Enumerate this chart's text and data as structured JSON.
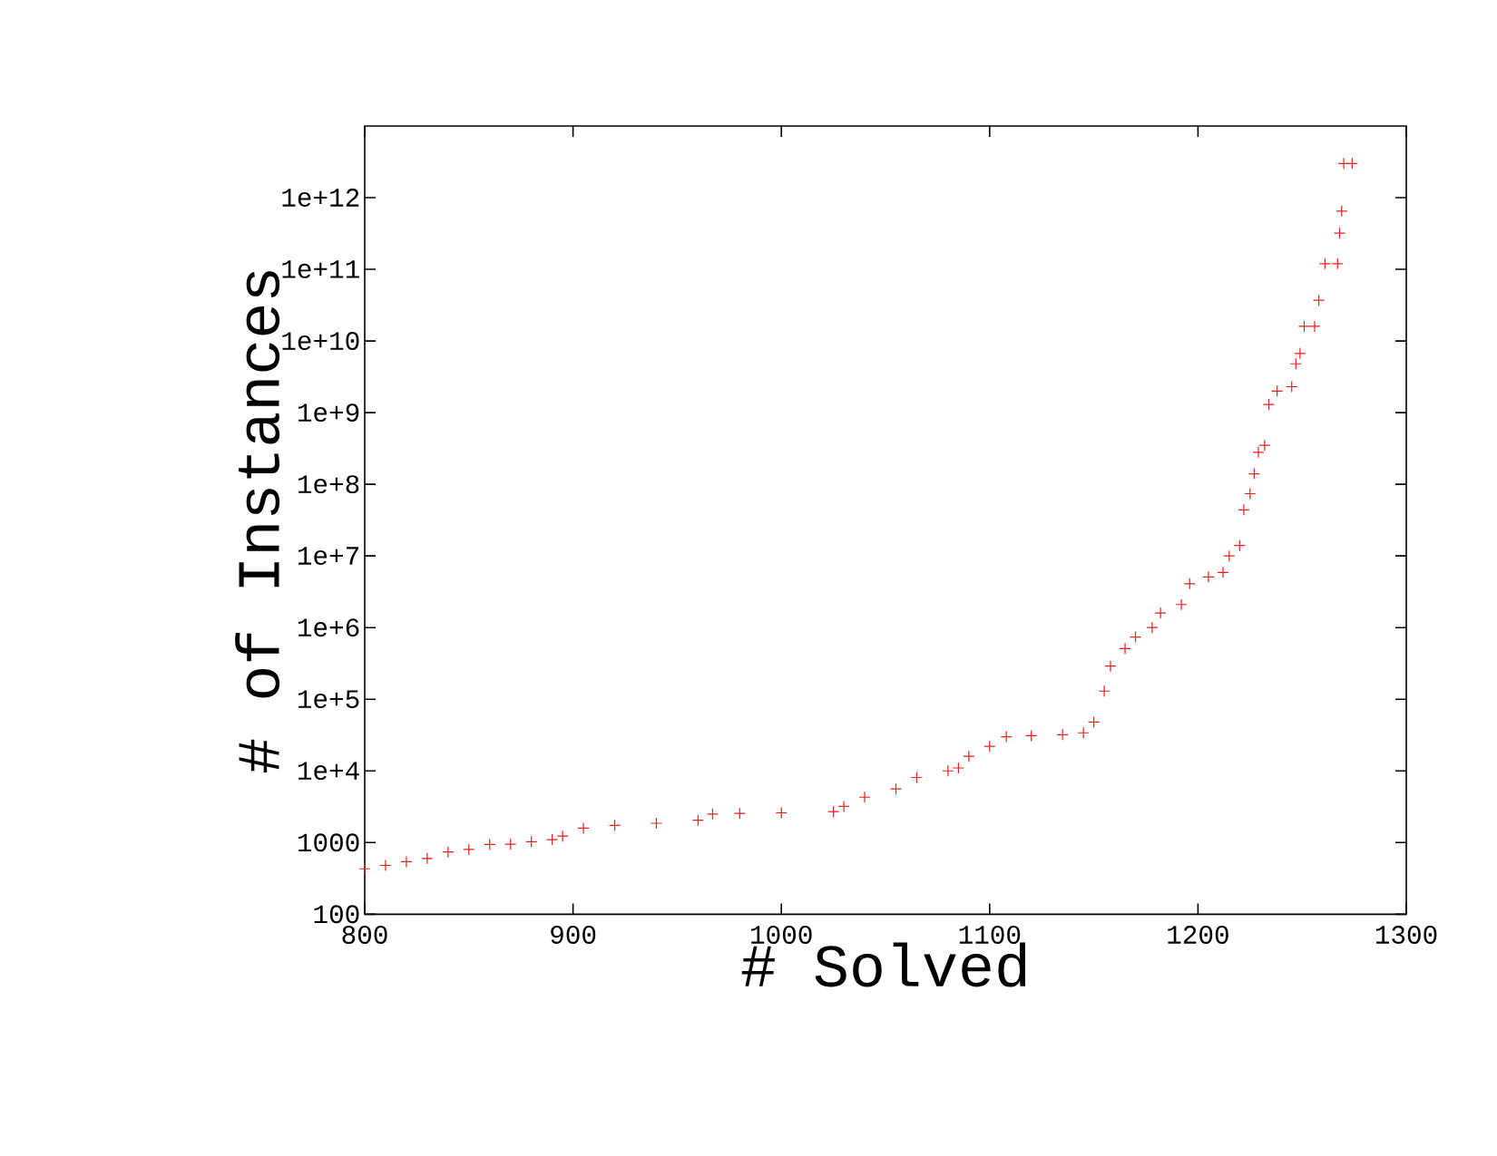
{
  "chart_data": {
    "type": "scatter",
    "xlabel": "# Solved",
    "ylabel": "# of Instances",
    "log": "y",
    "marker": "cross",
    "grid": false,
    "legend": false,
    "xlim": [
      800,
      1300
    ],
    "xticks": [
      800,
      900,
      1000,
      1100,
      1200,
      1300
    ],
    "ylim": [
      100,
      10000000000000.0
    ],
    "yticks": [
      100,
      1000,
      {
        "value": 10000.0,
        "label": "1e+4"
      },
      {
        "value": 100000.0,
        "label": "1e+5"
      },
      {
        "value": 1000000.0,
        "label": "1e+6"
      },
      {
        "value": 10000000.0,
        "label": "1e+7"
      },
      {
        "value": 100000000.0,
        "label": "1e+8"
      },
      {
        "value": 1000000000.0,
        "label": "1e+9"
      },
      {
        "value": 10000000000.0,
        "label": "1e+10"
      },
      {
        "value": 100000000000.0,
        "label": "1e+11"
      },
      {
        "value": 1000000000000.0,
        "label": "1e+12"
      }
    ],
    "series": [
      {
        "color": "#e8201c",
        "x": [
          800,
          810,
          820,
          830,
          840,
          850,
          860,
          870,
          880,
          890,
          895,
          905,
          920,
          940,
          960,
          967,
          980,
          1000,
          1025,
          1030,
          1040,
          1055,
          1065,
          1080,
          1085,
          1090,
          1100,
          1108,
          1120,
          1135,
          1145,
          1150,
          1155,
          1158,
          1165,
          1170,
          1178,
          1182,
          1192,
          1196,
          1205,
          1212,
          1215,
          1220,
          1222,
          1225,
          1227,
          1229,
          1232,
          1234,
          1238,
          1245,
          1247,
          1249,
          1251,
          1256,
          1258,
          1261,
          1267,
          1268,
          1269,
          1270,
          1274
        ],
        "values": [
          430,
          480,
          540,
          600,
          740,
          800,
          940,
          950,
          1030,
          1100,
          1230,
          1590,
          1740,
          1860,
          2050,
          2500,
          2550,
          2600,
          2700,
          3200,
          4300,
          5600,
          8100,
          10000,
          11000,
          16000,
          22000,
          30000,
          31000,
          32000,
          34000,
          48000,
          130000,
          290000,
          510000,
          740000,
          1000000,
          1600000,
          2100000,
          4100000,
          5100000,
          5900000,
          10000000,
          14000000,
          44000000,
          74000000,
          140000000,
          280000000,
          350000000,
          1300000000,
          2000000000,
          2300000000,
          4800000000,
          6700000000,
          16000000000,
          16000000000,
          37000000000,
          120000000000,
          120000000000,
          320000000000,
          650000000000,
          3000000000000,
          3000000000000
        ]
      }
    ]
  }
}
